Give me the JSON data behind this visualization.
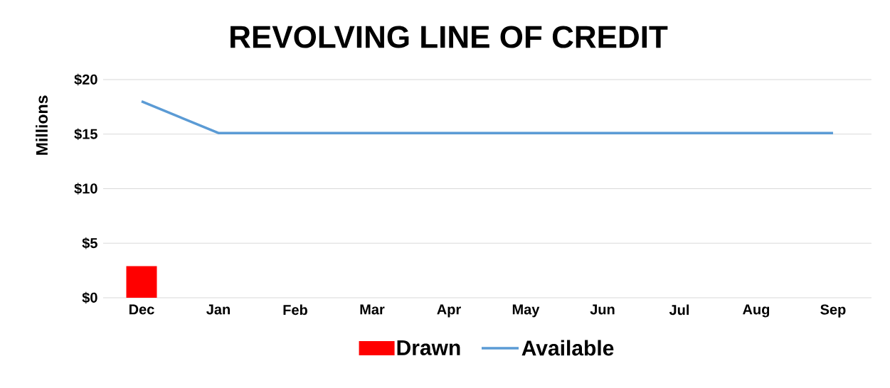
{
  "chart_data": {
    "type": "bar",
    "title": "REVOLVING LINE OF CREDIT",
    "ylabel": "Millions",
    "categories": [
      "Dec",
      "Jan",
      "Feb",
      "Mar",
      "Apr",
      "May",
      "Jun",
      "Jul",
      "Aug",
      "Sep"
    ],
    "series": [
      {
        "name": "Drawn",
        "color": "#ff0000",
        "values": [
          2.9,
          null,
          null,
          null,
          null,
          null,
          null,
          null,
          null,
          null
        ]
      },
      {
        "name": "Available",
        "type": "line",
        "color": "#5b9bd5",
        "values": [
          18,
          15.1,
          15.1,
          15.1,
          15.1,
          15.1,
          15.1,
          15.1,
          15.1,
          15.1
        ]
      }
    ],
    "ylim": [
      0,
      20
    ],
    "yticks": [
      {
        "value": 0,
        "label": "$0"
      },
      {
        "value": 5,
        "label": "$5"
      },
      {
        "value": 10,
        "label": "$10"
      },
      {
        "value": 15,
        "label": "$15"
      },
      {
        "value": 20,
        "label": "$20"
      }
    ],
    "grid": "y",
    "legend": "bottom"
  }
}
